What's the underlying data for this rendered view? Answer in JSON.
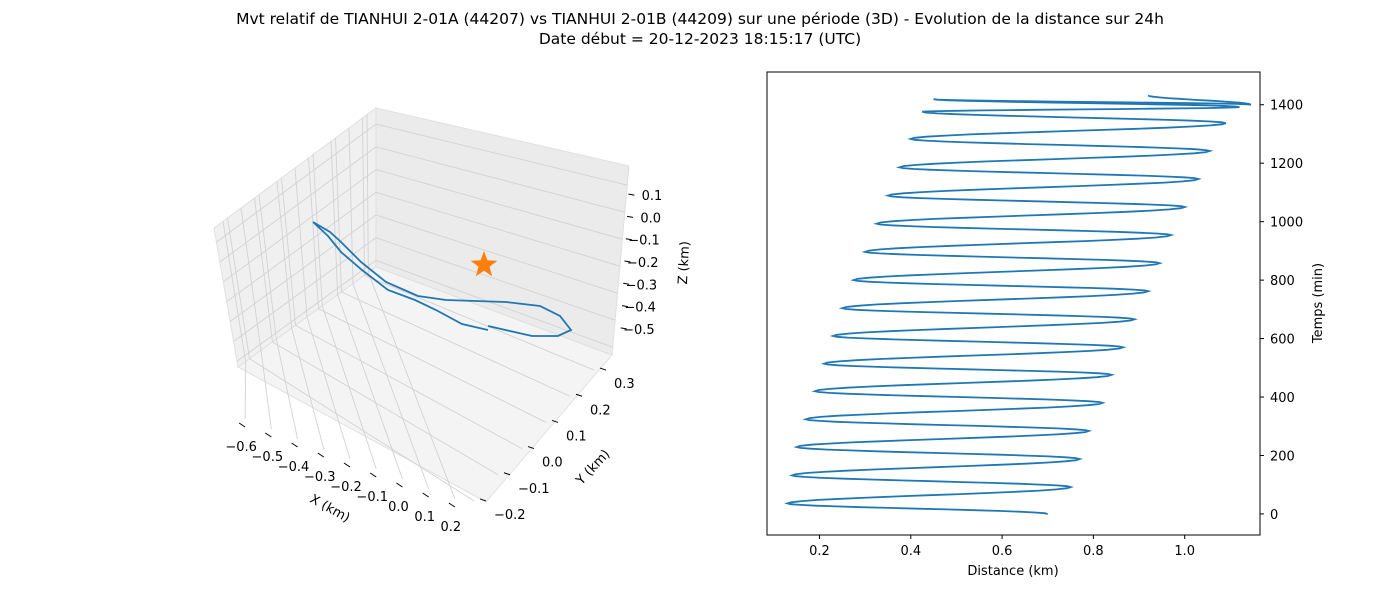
{
  "title": "Mvt relatif de TIANHUI 2-01A (44207) vs TIANHUI 2-01B (44209) sur une période (3D) - Evolution de la distance sur 24h",
  "subtitle": "Date début = 20-12-2023 18:15:17 (UTC)",
  "colors": {
    "line": "#1f77b4",
    "star": "#ff7f0e",
    "pane": "#f2f2f2",
    "grid": "#cccccc"
  },
  "chart_data": [
    {
      "type": "line3d",
      "xlabel": "X (km)",
      "ylabel": "Y (km)",
      "zlabel": "Z (km)",
      "x_ticks": [
        "−0.6",
        "−0.5",
        "−0.4",
        "−0.3",
        "−0.2",
        "−0.1",
        "0.0",
        "0.1",
        "0.2"
      ],
      "y_ticks": [
        "−0.2",
        "−0.1",
        "0.0",
        "0.1",
        "0.2",
        "0.3"
      ],
      "z_ticks": [
        "0.1",
        "0.0",
        "−0.1",
        "−0.2",
        "−0.3",
        "−0.4",
        "−0.5"
      ],
      "xlim": [
        -0.65,
        0.22
      ],
      "ylim": [
        -0.25,
        0.37
      ],
      "zlim": [
        -0.56,
        0.14
      ],
      "marker": {
        "shape": "star",
        "x": 0,
        "y": 0,
        "z": 0
      },
      "grid": true
    },
    {
      "type": "line",
      "xlabel": "Distance (km)",
      "ylabel": "Temps (min)",
      "x_ticks": [
        "0.2",
        "0.4",
        "0.6",
        "0.8",
        "1.0"
      ],
      "y_ticks": [
        "0",
        "200",
        "400",
        "600",
        "800",
        "1000",
        "1200",
        "1400"
      ],
      "xlim": [
        0.085,
        1.165
      ],
      "ylim": [
        -72,
        1512
      ],
      "y_axis_side": "right",
      "series": [
        {
          "x": [
            0.7,
            0.13,
            0.75,
            0.14,
            0.77,
            0.15,
            0.79,
            0.17,
            0.82,
            0.19,
            0.84,
            0.21,
            0.865,
            0.23,
            0.89,
            0.25,
            0.92,
            0.275,
            0.945,
            0.3,
            0.97,
            0.325,
            1.0,
            0.35,
            1.03,
            0.375,
            1.055,
            0.4,
            1.09,
            0.425,
            1.12,
            0.45,
            1.145,
            0.92
          ],
          "y": [
            0,
            36,
            92,
            132,
            188,
            229,
            284,
            324,
            380,
            420,
            476,
            514,
            570,
            609,
            666,
            704,
            762,
            800,
            858,
            897,
            954,
            993,
            1050,
            1089,
            1146,
            1186,
            1242,
            1283,
            1337,
            1376,
            1392,
            1419,
            1400,
            1432
          ]
        }
      ]
    }
  ]
}
